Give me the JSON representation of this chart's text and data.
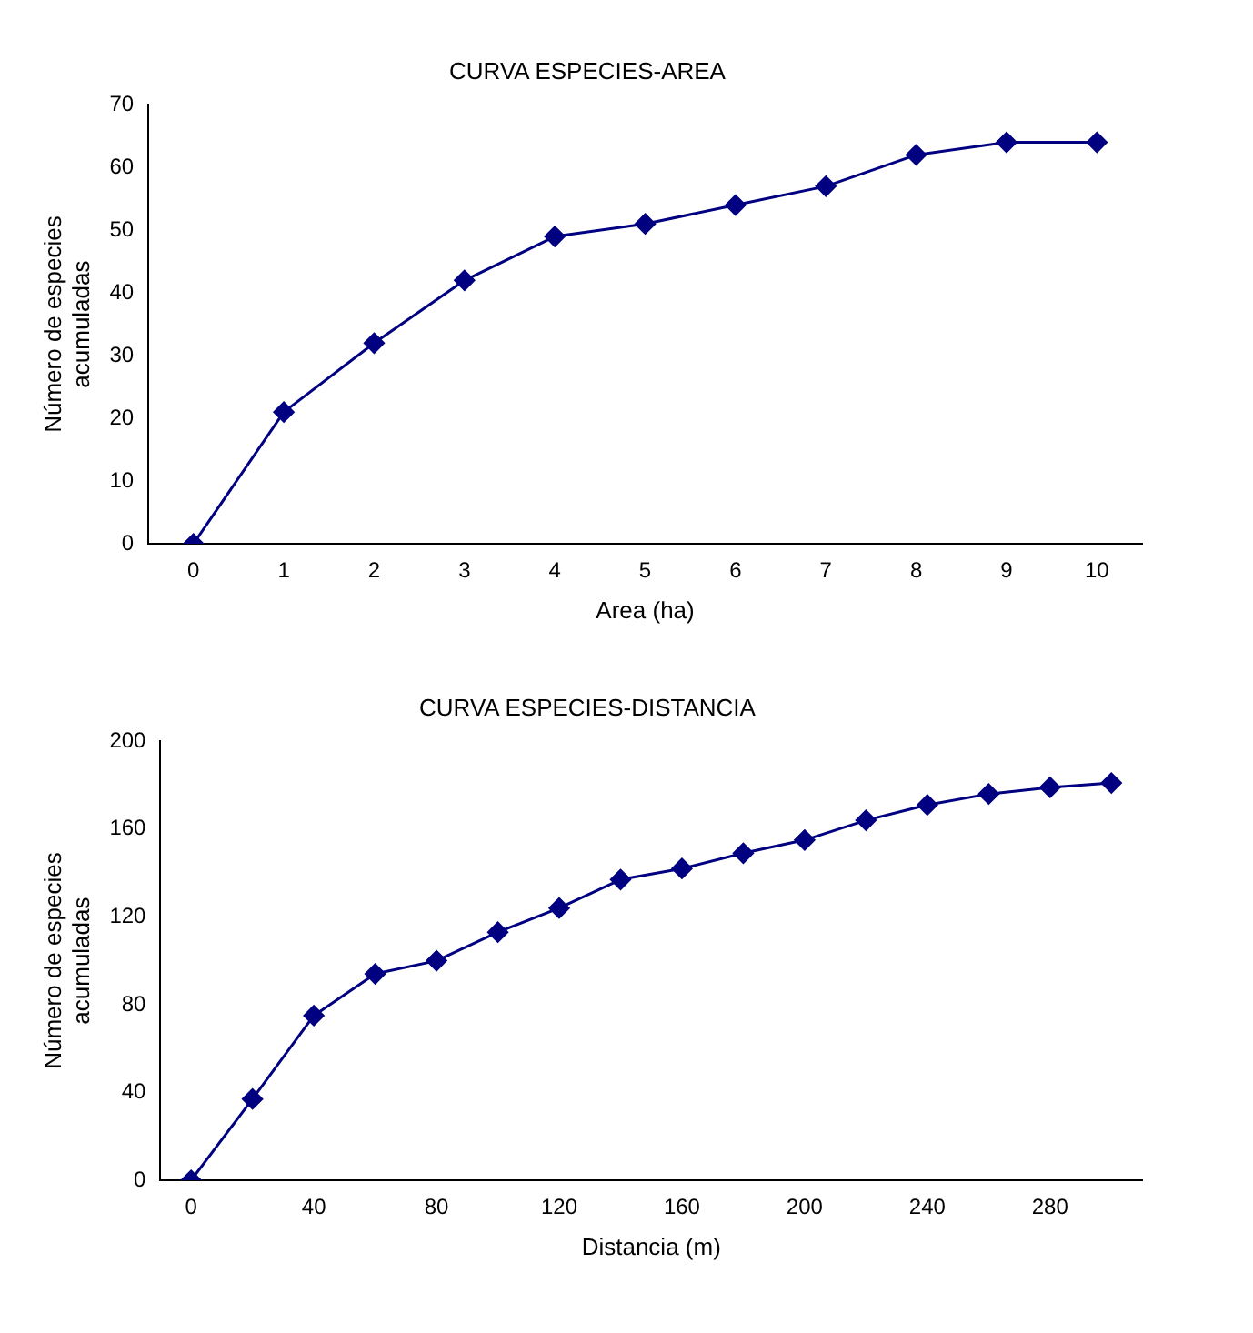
{
  "chart_data": [
    {
      "type": "line",
      "title": "CURVA ESPECIES-AREA",
      "xlabel": "Area (ha)",
      "ylabel": "Número de especies acumuladas",
      "x": [
        0,
        1,
        2,
        3,
        4,
        5,
        6,
        7,
        8,
        9,
        10
      ],
      "xlim": [
        -0.5,
        10.5
      ],
      "xticks": [
        0,
        1,
        2,
        3,
        4,
        5,
        6,
        7,
        8,
        9,
        10
      ],
      "ylim": [
        0,
        70
      ],
      "yticks": [
        0,
        10,
        20,
        30,
        40,
        50,
        60,
        70
      ],
      "grid": false,
      "legend": false,
      "marker": "diamond",
      "line_style": "solid",
      "series": [
        {
          "color": "#000080",
          "values": [
            0,
            21,
            32,
            42,
            49,
            51,
            54,
            57,
            62,
            64,
            64
          ]
        }
      ]
    },
    {
      "type": "line",
      "title": "CURVA ESPECIES-DISTANCIA",
      "xlabel": "Distancia (m)",
      "ylabel": "Número de especies acumuladas",
      "x": [
        0,
        20,
        40,
        60,
        80,
        100,
        120,
        140,
        160,
        180,
        200,
        220,
        240,
        260,
        280,
        300
      ],
      "xlim": [
        -10,
        310
      ],
      "xticks": [
        0,
        40,
        80,
        120,
        160,
        200,
        240,
        280
      ],
      "ylim": [
        0,
        200
      ],
      "yticks": [
        0,
        40,
        80,
        120,
        160,
        200
      ],
      "grid": false,
      "legend": false,
      "marker": "diamond",
      "line_style": "solid",
      "series": [
        {
          "color": "#000080",
          "values": [
            0,
            37,
            75,
            94,
            100,
            113,
            124,
            137,
            142,
            149,
            155,
            164,
            171,
            176,
            179,
            181
          ]
        }
      ]
    }
  ]
}
